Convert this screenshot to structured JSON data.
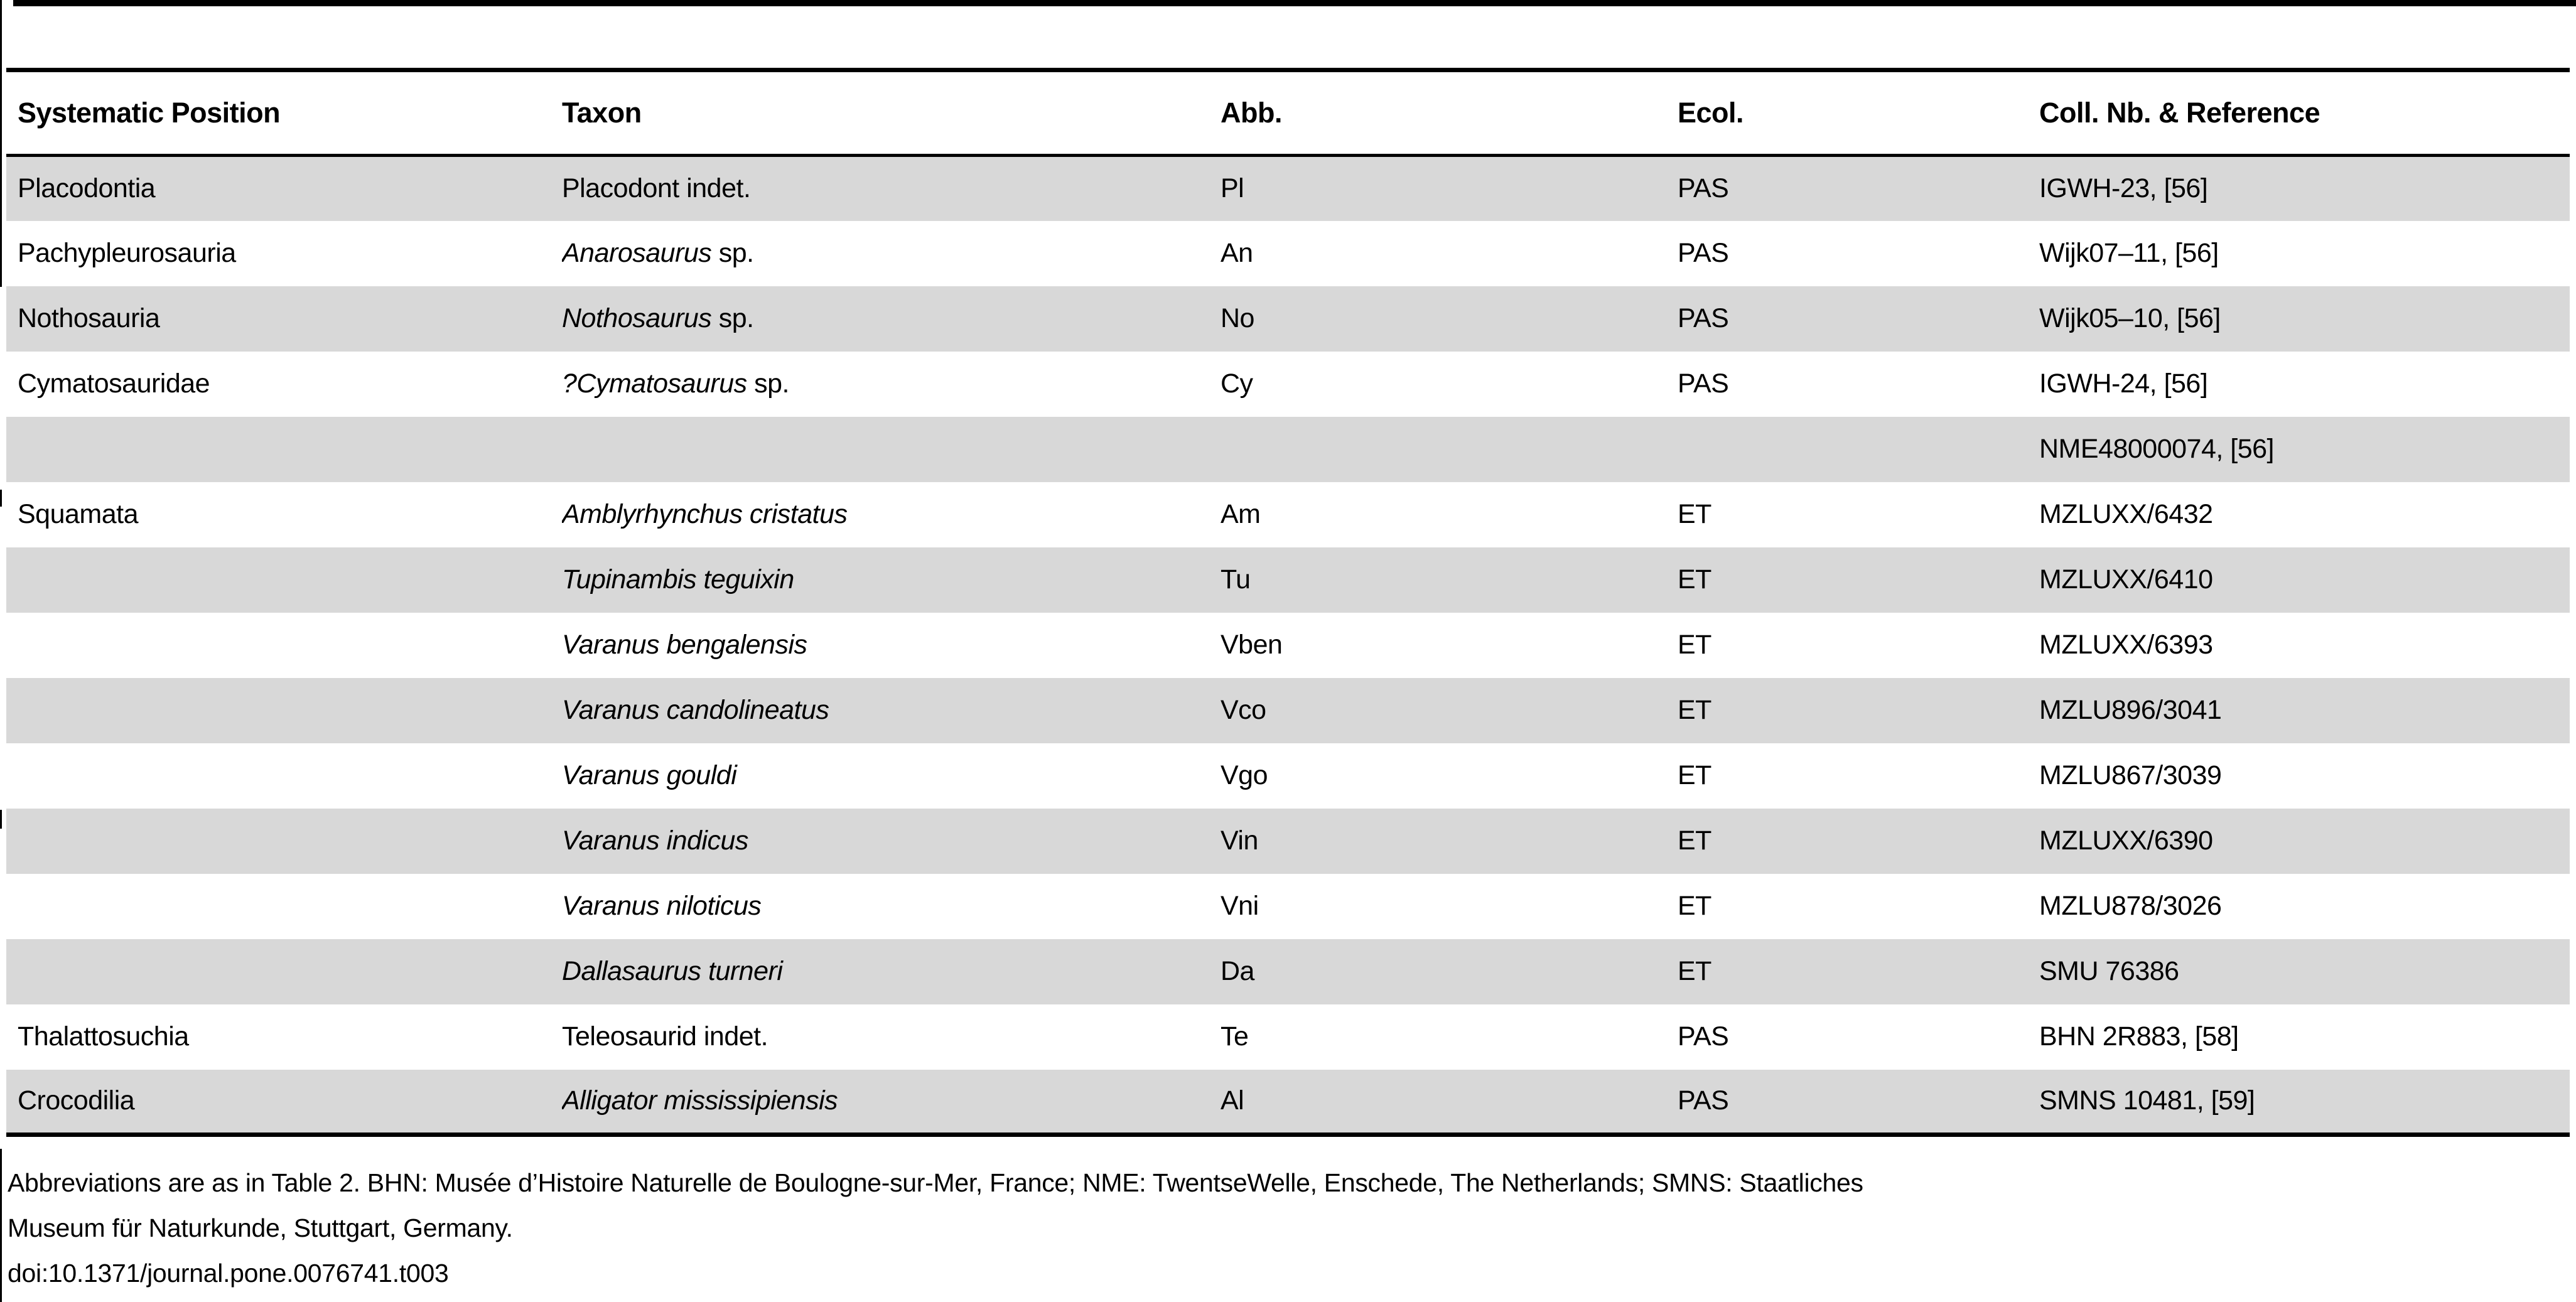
{
  "colors": {
    "row_shading": "#d8d8d8",
    "rule": "#000000"
  },
  "table": {
    "columns": [
      "Systematic Position",
      "Taxon",
      "Abb.",
      "Ecol.",
      "Coll. Nb. & Reference"
    ],
    "rows": [
      {
        "pos": "Placodontia",
        "taxon_italic": "",
        "taxon_roman": "Placodont indet.",
        "abb": "Pl",
        "ecol": "PAS",
        "coll": "IGWH-23, [56]"
      },
      {
        "pos": "Pachypleurosauria",
        "taxon_italic": "Anarosaurus",
        "taxon_roman": " sp.",
        "abb": "An",
        "ecol": "PAS",
        "coll": "Wijk07–11, [56]"
      },
      {
        "pos": "Nothosauria",
        "taxon_italic": "Nothosaurus",
        "taxon_roman": " sp.",
        "abb": "No",
        "ecol": "PAS",
        "coll": "Wijk05–10, [56]"
      },
      {
        "pos": "Cymatosauridae",
        "taxon_italic": "?Cymatosaurus",
        "taxon_roman": " sp.",
        "abb": "Cy",
        "ecol": "PAS",
        "coll": "IGWH-24, [56]"
      },
      {
        "pos": "",
        "taxon_italic": "",
        "taxon_roman": "",
        "abb": "",
        "ecol": "",
        "coll": "NME48000074, [56]"
      },
      {
        "pos": "Squamata",
        "taxon_italic": "Amblyrhynchus cristatus",
        "taxon_roman": "",
        "abb": "Am",
        "ecol": "ET",
        "coll": "MZLUXX/6432"
      },
      {
        "pos": "",
        "taxon_italic": "Tupinambis teguixin",
        "taxon_roman": "",
        "abb": "Tu",
        "ecol": "ET",
        "coll": "MZLUXX/6410"
      },
      {
        "pos": "",
        "taxon_italic": "Varanus bengalensis",
        "taxon_roman": "",
        "abb": "Vben",
        "ecol": "ET",
        "coll": "MZLUXX/6393"
      },
      {
        "pos": "",
        "taxon_italic": "Varanus candolineatus",
        "taxon_roman": "",
        "abb": "Vco",
        "ecol": "ET",
        "coll": "MZLU896/3041"
      },
      {
        "pos": "",
        "taxon_italic": "Varanus gouldi",
        "taxon_roman": "",
        "abb": "Vgo",
        "ecol": "ET",
        "coll": "MZLU867/3039"
      },
      {
        "pos": "",
        "taxon_italic": "Varanus indicus",
        "taxon_roman": "",
        "abb": "Vin",
        "ecol": "ET",
        "coll": "MZLUXX/6390"
      },
      {
        "pos": "",
        "taxon_italic": "Varanus niloticus",
        "taxon_roman": "",
        "abb": "Vni",
        "ecol": "ET",
        "coll": "MZLU878/3026"
      },
      {
        "pos": "",
        "taxon_italic": "Dallasaurus turneri",
        "taxon_roman": "",
        "abb": "Da",
        "ecol": "ET",
        "coll": "SMU 76386"
      },
      {
        "pos": "Thalattosuchia",
        "taxon_italic": "",
        "taxon_roman": "Teleosaurid indet.",
        "abb": "Te",
        "ecol": "PAS",
        "coll": "BHN 2R883, [58]"
      },
      {
        "pos": "Crocodilia",
        "taxon_italic": "Alligator mississipiensis",
        "taxon_roman": "",
        "abb": "Al",
        "ecol": "PAS",
        "coll": "SMNS 10481, [59]"
      }
    ]
  },
  "footnote": {
    "line1": "Abbreviations are as in Table 2. BHN: Musée d’Histoire Naturelle de Boulogne-sur-Mer, France; NME: TwentseWelle, Enschede, The Netherlands; SMNS: Staatliches",
    "line2": "Museum für Naturkunde, Stuttgart, Germany.",
    "doi": "doi:10.1371/journal.pone.0076741.t003"
  }
}
